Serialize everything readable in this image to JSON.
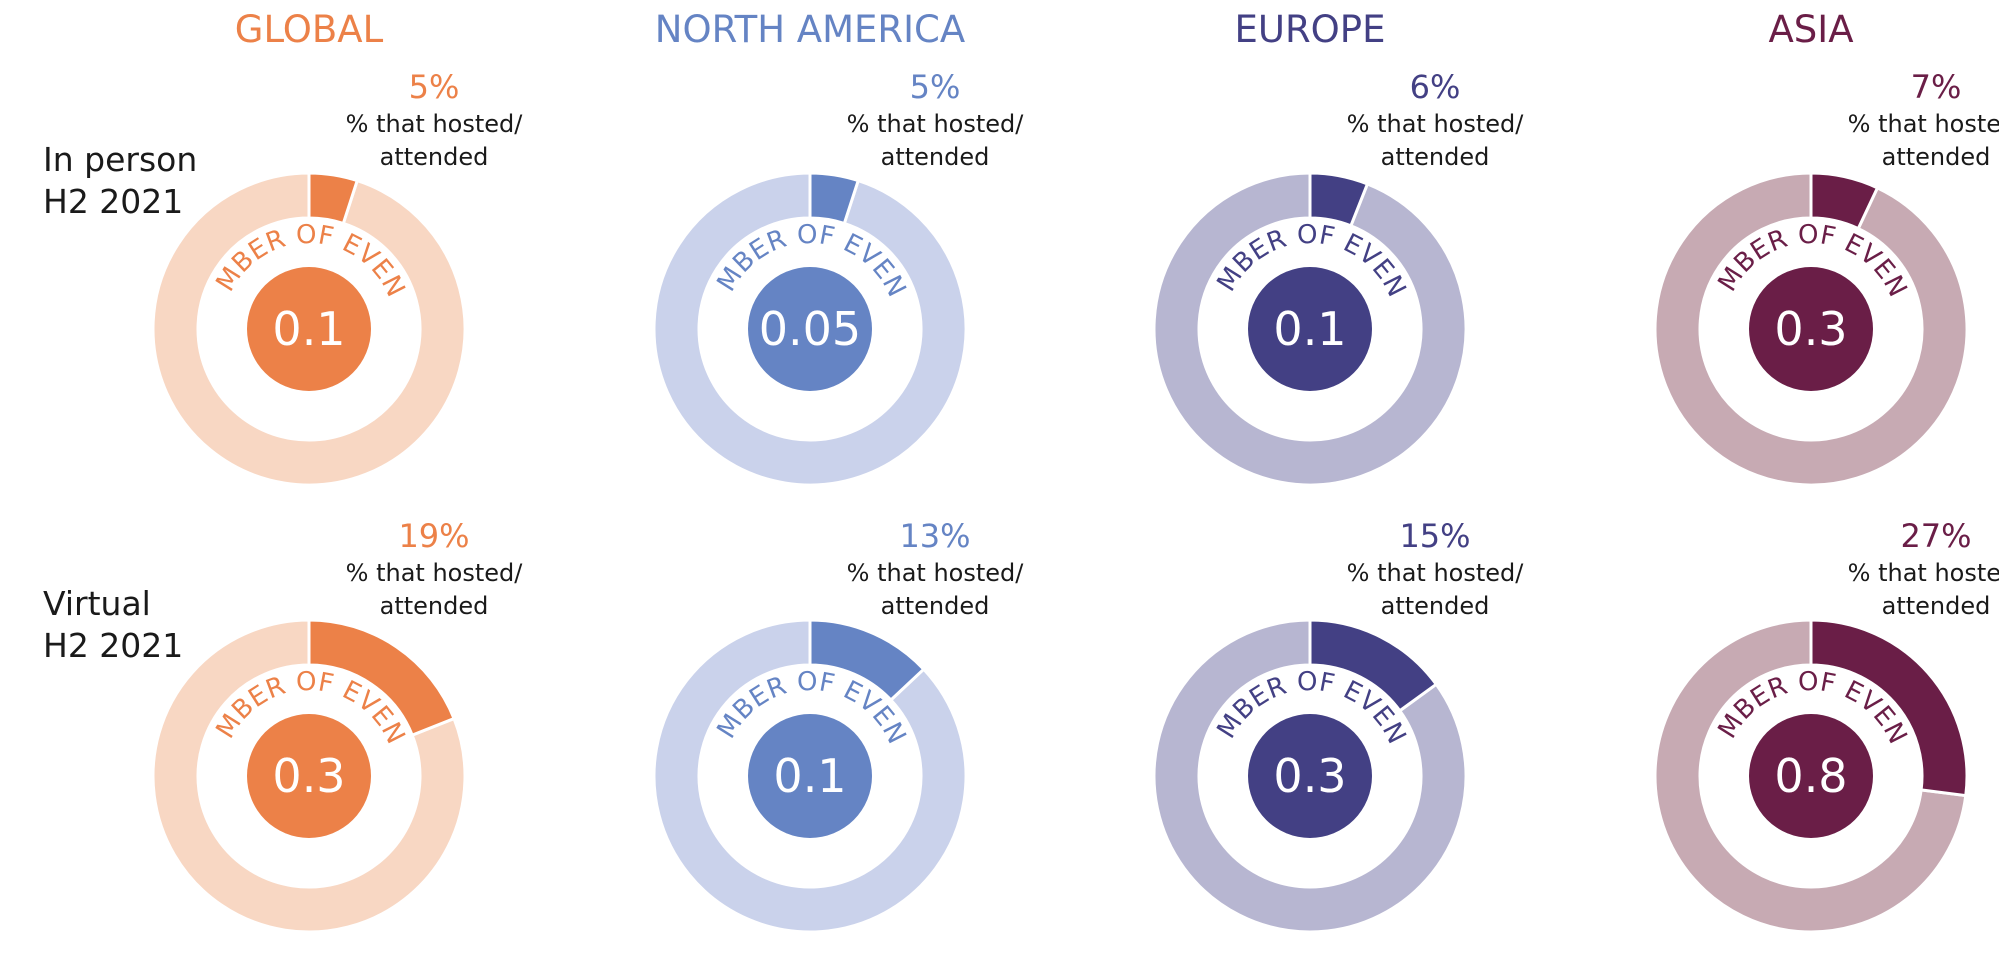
{
  "chart_data": {
    "type": "pie",
    "regions": [
      {
        "name": "GLOBAL",
        "color": "#ec8148",
        "light": "#f8d7c3"
      },
      {
        "name": "NORTH AMERICA",
        "color": "#6584c4",
        "light": "#cad2eb"
      },
      {
        "name": "EUROPE",
        "color": "#434084",
        "light": "#b7b6d1"
      },
      {
        "name": "ASIA",
        "color": "#6a1e47",
        "light": "#c7aab3"
      }
    ],
    "rows": [
      {
        "label": [
          "In person",
          "H2 2021"
        ],
        "percents": [
          "5%",
          "5%",
          "6%",
          "7%"
        ],
        "percent_values": [
          5,
          5,
          6,
          7
        ],
        "event_counts": [
          "0.1",
          "0.05",
          "0.1",
          "0.3"
        ]
      },
      {
        "label": [
          "Virtual",
          "H2 2021"
        ],
        "percents": [
          "19%",
          "13%",
          "15%",
          "27%"
        ],
        "percent_values": [
          19,
          13,
          15,
          27
        ],
        "event_counts": [
          "0.3",
          "0.1",
          "0.3",
          "0.8"
        ]
      }
    ],
    "percent_caption": [
      "% that hosted/",
      "attended"
    ],
    "ring_caption": "NUMBER OF EVENTS"
  }
}
